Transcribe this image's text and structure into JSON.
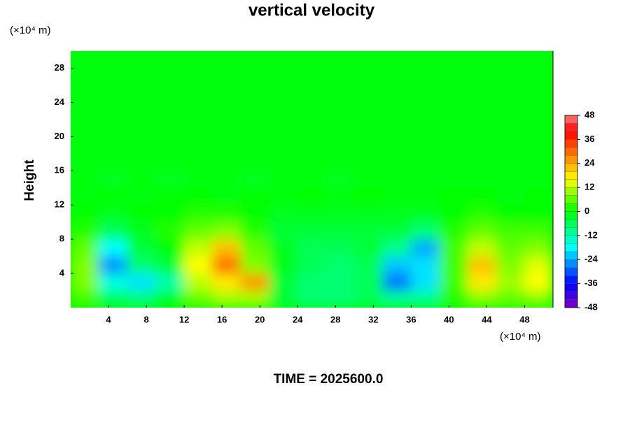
{
  "chart_data": {
    "type": "contour",
    "title": "vertical velocity",
    "y_label": "Height",
    "y_unit": "(×10⁴ m)",
    "x_unit": "(×10⁴ m)",
    "footer": "TIME = 2025600.0",
    "xlim": [
      0,
      51
    ],
    "ylim": [
      0,
      30
    ],
    "xticks": [
      4,
      8,
      12,
      16,
      20,
      24,
      28,
      32,
      36,
      40,
      44,
      48
    ],
    "yticks": [
      4,
      8,
      12,
      16,
      20,
      24,
      28
    ],
    "x": [
      1.5,
      4.5,
      7.5,
      10.5,
      13.5,
      16.5,
      19.5,
      22.5,
      25.5,
      28.5,
      31.5,
      34.5,
      37.5,
      40.5,
      43.5,
      46.5,
      49.5
    ],
    "y": [
      1,
      3,
      5,
      7,
      9,
      11,
      13,
      15,
      17,
      19,
      21,
      23,
      25,
      27,
      29
    ],
    "z": [
      [
        4,
        -6,
        -8,
        -2,
        6,
        10,
        10,
        -4,
        -8,
        -8,
        -6,
        -10,
        -10,
        2,
        8,
        6,
        8
      ],
      [
        8,
        -16,
        -20,
        -12,
        12,
        18,
        26,
        -4,
        -8,
        -8,
        -6,
        -28,
        -20,
        4,
        18,
        10,
        16
      ],
      [
        8,
        -26,
        -8,
        -4,
        16,
        30,
        8,
        -2,
        -6,
        -8,
        -6,
        -22,
        -20,
        4,
        22,
        8,
        14
      ],
      [
        6,
        -18,
        -4,
        0,
        12,
        22,
        6,
        -2,
        -6,
        -6,
        -4,
        -10,
        -24,
        4,
        12,
        6,
        8
      ],
      [
        2,
        -6,
        -2,
        2,
        6,
        8,
        2,
        -4,
        -4,
        -4,
        -4,
        -4,
        -8,
        2,
        6,
        4,
        4
      ],
      [
        0,
        -2,
        0,
        0,
        2,
        2,
        0,
        -2,
        -2,
        -2,
        -2,
        -2,
        -2,
        0,
        2,
        0,
        0
      ],
      [
        -1,
        0,
        -1,
        0,
        0,
        -1,
        0,
        -1,
        0,
        -1,
        0,
        -1,
        -1,
        0,
        0,
        -1,
        0
      ],
      [
        -1,
        -2,
        -1,
        -2,
        -1,
        -1,
        -2,
        -1,
        -1,
        -2,
        -1,
        -1,
        -1,
        -1,
        -1,
        -1,
        -1
      ],
      [
        -1,
        -1,
        -1,
        -1,
        -1,
        -1,
        -1,
        -1,
        -1,
        -1,
        -1,
        -1,
        -1,
        -1,
        -1,
        -1,
        -1
      ],
      [
        -1,
        -1,
        -1,
        -1,
        -1,
        -1,
        -1,
        -1,
        -1,
        -1,
        -1,
        -1,
        -1,
        -1,
        -1,
        -1,
        -1
      ],
      [
        -1,
        -1,
        -1,
        -1,
        -1,
        -1,
        -1,
        -1,
        -1,
        -1,
        -1,
        -1,
        -1,
        -1,
        -1,
        -1,
        -1
      ],
      [
        -1,
        -1,
        -1,
        -1,
        -1,
        -1,
        -1,
        -1,
        -1,
        -1,
        -1,
        -1,
        -1,
        -1,
        -1,
        -1,
        -1
      ],
      [
        -1,
        -1,
        -1,
        -1,
        -1,
        -1,
        -1,
        -1,
        -1,
        -1,
        -1,
        -1,
        -1,
        -1,
        -1,
        -1,
        -1
      ],
      [
        -1,
        -1,
        -1,
        -1,
        -1,
        -1,
        -1,
        -1,
        -1,
        -1,
        -1,
        -1,
        -1,
        -1,
        -1,
        -1,
        -1
      ],
      [
        -1,
        -1,
        -1,
        -1,
        -1,
        -1,
        -1,
        -1,
        -1,
        -1,
        -1,
        -1,
        -1,
        -1,
        -1,
        -1,
        -1
      ]
    ],
    "zlim": [
      -48,
      48
    ],
    "zticks": [
      -48,
      -36,
      -24,
      -12,
      0,
      12,
      24,
      36,
      48
    ],
    "level_step": 4,
    "colorscale": [
      [
        -48,
        "#8000c0"
      ],
      [
        -36,
        "#0000ff"
      ],
      [
        -18,
        "#00ffff"
      ],
      [
        0,
        "#00ff00"
      ],
      [
        16,
        "#ffff00"
      ],
      [
        28,
        "#ff8000"
      ],
      [
        40,
        "#ff0000"
      ],
      [
        48,
        "#ff8080"
      ]
    ]
  }
}
